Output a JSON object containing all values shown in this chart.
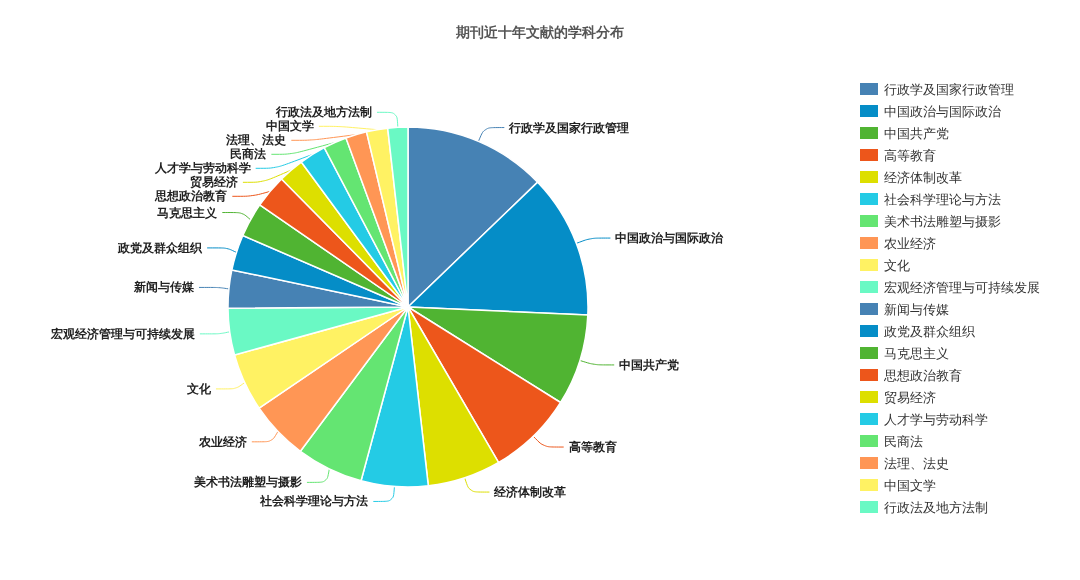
{
  "chart_data": {
    "type": "pie",
    "title": "期刊近十年文献的学科分布",
    "categories": [
      "行政学及国家行政管理",
      "中国政治与国际政治",
      "中国共产党",
      "高等教育",
      "经济体制改革",
      "社会科学理论与方法",
      "美术书法雕塑与摄影",
      "农业经济",
      "文化",
      "宏观经济管理与可持续发展",
      "新闻与传媒",
      "政党及群众组织",
      "马克思主义",
      "思想政治教育",
      "贸易经济",
      "人才学与劳动科学",
      "民商法",
      "法理、法史",
      "中国文学",
      "行政法及地方法制"
    ],
    "values": [
      12.8,
      12.9,
      8.2,
      7.7,
      6.6,
      6.0,
      6.0,
      5.3,
      5.2,
      4.2,
      3.4,
      3.2,
      3.1,
      3.0,
      2.3,
      2.4,
      2.1,
      1.9,
      1.9,
      1.8
    ],
    "colors": [
      "#4682b4",
      "#058dc7",
      "#50b432",
      "#ed561b",
      "#dddf00",
      "#24cbe5",
      "#64e572",
      "#ff9655",
      "#fff263",
      "#6af9c4",
      "#4682b4",
      "#058dc7",
      "#50b432",
      "#ed561b",
      "#dddf00",
      "#24cbe5",
      "#64e572",
      "#ff9655",
      "#fff263",
      "#6af9c4"
    ],
    "legend": "right"
  }
}
